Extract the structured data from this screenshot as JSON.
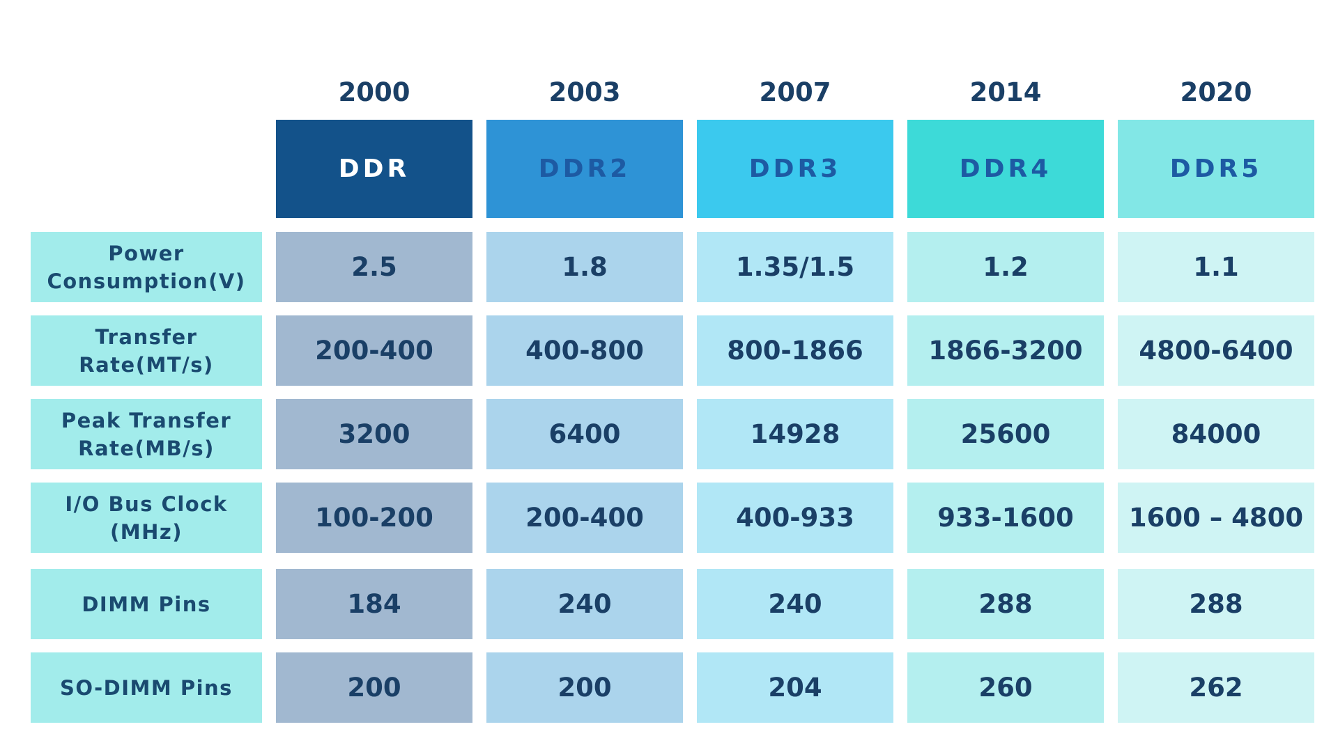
{
  "colors": {
    "header_text_dark": "#1a3f66",
    "label_bg": "#a2eceb",
    "gen_bg": [
      "#13528a",
      "#2e93d6",
      "#3bc9ee",
      "#3ddad8",
      "#82e7e6"
    ],
    "gen_text": [
      "#ffffff",
      "#1d5aa3",
      "#1d5aa3",
      "#1d5aa3",
      "#1d5aa3"
    ],
    "cell_bg": [
      "#a1b8d0",
      "#abd4ec",
      "#b1e7f6",
      "#b4efef",
      "#cff4f4"
    ]
  },
  "table": {
    "columns": [
      {
        "year": "2000",
        "name": "DDR"
      },
      {
        "year": "2003",
        "name": "DDR2"
      },
      {
        "year": "2007",
        "name": "DDR3"
      },
      {
        "year": "2014",
        "name": "DDR4"
      },
      {
        "year": "2020",
        "name": "DDR5"
      }
    ],
    "rows": [
      {
        "label": "Power\nConsumption(V)",
        "values": [
          "2.5",
          "1.8",
          "1.35/1.5",
          "1.2",
          "1.1"
        ]
      },
      {
        "label": "Transfer\nRate(MT/s)",
        "values": [
          "200-400",
          "400-800",
          "800-1866",
          "1866-3200",
          "4800-6400"
        ]
      },
      {
        "label": "Peak Transfer\nRate(MB/s)",
        "values": [
          "3200",
          "6400",
          "14928",
          "25600",
          "84000"
        ]
      },
      {
        "label": "I/O Bus Clock\n(MHz)",
        "values": [
          "100-200",
          "200-400",
          "400-933",
          "933-1600",
          "1600 – 4800"
        ]
      },
      {
        "label": "DIMM Pins",
        "values": [
          "184",
          "240",
          "240",
          "288",
          "288"
        ]
      },
      {
        "label": "SO-DIMM Pins",
        "values": [
          "200",
          "200",
          "204",
          "260",
          "262"
        ]
      }
    ]
  }
}
